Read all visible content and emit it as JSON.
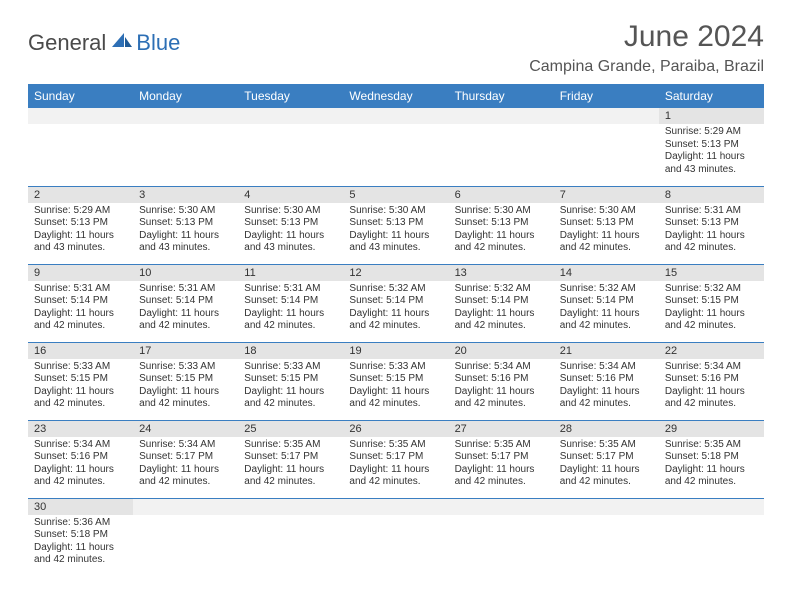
{
  "logo": {
    "part1": "General",
    "part2": "Blue"
  },
  "title": "June 2024",
  "location": "Campina Grande, Paraiba, Brazil",
  "header_bg": "#3a7ec1",
  "daybar_bg": "#e4e4e4",
  "border_color": "#3a7ec1",
  "weekdays": [
    "Sunday",
    "Monday",
    "Tuesday",
    "Wednesday",
    "Thursday",
    "Friday",
    "Saturday"
  ],
  "weeks": [
    [
      null,
      null,
      null,
      null,
      null,
      null,
      {
        "n": "1",
        "sunrise": "Sunrise: 5:29 AM",
        "sunset": "Sunset: 5:13 PM",
        "daylight": "Daylight: 11 hours and 43 minutes."
      }
    ],
    [
      {
        "n": "2",
        "sunrise": "Sunrise: 5:29 AM",
        "sunset": "Sunset: 5:13 PM",
        "daylight": "Daylight: 11 hours and 43 minutes."
      },
      {
        "n": "3",
        "sunrise": "Sunrise: 5:30 AM",
        "sunset": "Sunset: 5:13 PM",
        "daylight": "Daylight: 11 hours and 43 minutes."
      },
      {
        "n": "4",
        "sunrise": "Sunrise: 5:30 AM",
        "sunset": "Sunset: 5:13 PM",
        "daylight": "Daylight: 11 hours and 43 minutes."
      },
      {
        "n": "5",
        "sunrise": "Sunrise: 5:30 AM",
        "sunset": "Sunset: 5:13 PM",
        "daylight": "Daylight: 11 hours and 43 minutes."
      },
      {
        "n": "6",
        "sunrise": "Sunrise: 5:30 AM",
        "sunset": "Sunset: 5:13 PM",
        "daylight": "Daylight: 11 hours and 42 minutes."
      },
      {
        "n": "7",
        "sunrise": "Sunrise: 5:30 AM",
        "sunset": "Sunset: 5:13 PM",
        "daylight": "Daylight: 11 hours and 42 minutes."
      },
      {
        "n": "8",
        "sunrise": "Sunrise: 5:31 AM",
        "sunset": "Sunset: 5:13 PM",
        "daylight": "Daylight: 11 hours and 42 minutes."
      }
    ],
    [
      {
        "n": "9",
        "sunrise": "Sunrise: 5:31 AM",
        "sunset": "Sunset: 5:14 PM",
        "daylight": "Daylight: 11 hours and 42 minutes."
      },
      {
        "n": "10",
        "sunrise": "Sunrise: 5:31 AM",
        "sunset": "Sunset: 5:14 PM",
        "daylight": "Daylight: 11 hours and 42 minutes."
      },
      {
        "n": "11",
        "sunrise": "Sunrise: 5:31 AM",
        "sunset": "Sunset: 5:14 PM",
        "daylight": "Daylight: 11 hours and 42 minutes."
      },
      {
        "n": "12",
        "sunrise": "Sunrise: 5:32 AM",
        "sunset": "Sunset: 5:14 PM",
        "daylight": "Daylight: 11 hours and 42 minutes."
      },
      {
        "n": "13",
        "sunrise": "Sunrise: 5:32 AM",
        "sunset": "Sunset: 5:14 PM",
        "daylight": "Daylight: 11 hours and 42 minutes."
      },
      {
        "n": "14",
        "sunrise": "Sunrise: 5:32 AM",
        "sunset": "Sunset: 5:14 PM",
        "daylight": "Daylight: 11 hours and 42 minutes."
      },
      {
        "n": "15",
        "sunrise": "Sunrise: 5:32 AM",
        "sunset": "Sunset: 5:15 PM",
        "daylight": "Daylight: 11 hours and 42 minutes."
      }
    ],
    [
      {
        "n": "16",
        "sunrise": "Sunrise: 5:33 AM",
        "sunset": "Sunset: 5:15 PM",
        "daylight": "Daylight: 11 hours and 42 minutes."
      },
      {
        "n": "17",
        "sunrise": "Sunrise: 5:33 AM",
        "sunset": "Sunset: 5:15 PM",
        "daylight": "Daylight: 11 hours and 42 minutes."
      },
      {
        "n": "18",
        "sunrise": "Sunrise: 5:33 AM",
        "sunset": "Sunset: 5:15 PM",
        "daylight": "Daylight: 11 hours and 42 minutes."
      },
      {
        "n": "19",
        "sunrise": "Sunrise: 5:33 AM",
        "sunset": "Sunset: 5:15 PM",
        "daylight": "Daylight: 11 hours and 42 minutes."
      },
      {
        "n": "20",
        "sunrise": "Sunrise: 5:34 AM",
        "sunset": "Sunset: 5:16 PM",
        "daylight": "Daylight: 11 hours and 42 minutes."
      },
      {
        "n": "21",
        "sunrise": "Sunrise: 5:34 AM",
        "sunset": "Sunset: 5:16 PM",
        "daylight": "Daylight: 11 hours and 42 minutes."
      },
      {
        "n": "22",
        "sunrise": "Sunrise: 5:34 AM",
        "sunset": "Sunset: 5:16 PM",
        "daylight": "Daylight: 11 hours and 42 minutes."
      }
    ],
    [
      {
        "n": "23",
        "sunrise": "Sunrise: 5:34 AM",
        "sunset": "Sunset: 5:16 PM",
        "daylight": "Daylight: 11 hours and 42 minutes."
      },
      {
        "n": "24",
        "sunrise": "Sunrise: 5:34 AM",
        "sunset": "Sunset: 5:17 PM",
        "daylight": "Daylight: 11 hours and 42 minutes."
      },
      {
        "n": "25",
        "sunrise": "Sunrise: 5:35 AM",
        "sunset": "Sunset: 5:17 PM",
        "daylight": "Daylight: 11 hours and 42 minutes."
      },
      {
        "n": "26",
        "sunrise": "Sunrise: 5:35 AM",
        "sunset": "Sunset: 5:17 PM",
        "daylight": "Daylight: 11 hours and 42 minutes."
      },
      {
        "n": "27",
        "sunrise": "Sunrise: 5:35 AM",
        "sunset": "Sunset: 5:17 PM",
        "daylight": "Daylight: 11 hours and 42 minutes."
      },
      {
        "n": "28",
        "sunrise": "Sunrise: 5:35 AM",
        "sunset": "Sunset: 5:17 PM",
        "daylight": "Daylight: 11 hours and 42 minutes."
      },
      {
        "n": "29",
        "sunrise": "Sunrise: 5:35 AM",
        "sunset": "Sunset: 5:18 PM",
        "daylight": "Daylight: 11 hours and 42 minutes."
      }
    ],
    [
      {
        "n": "30",
        "sunrise": "Sunrise: 5:36 AM",
        "sunset": "Sunset: 5:18 PM",
        "daylight": "Daylight: 11 hours and 42 minutes."
      },
      null,
      null,
      null,
      null,
      null,
      null
    ]
  ]
}
